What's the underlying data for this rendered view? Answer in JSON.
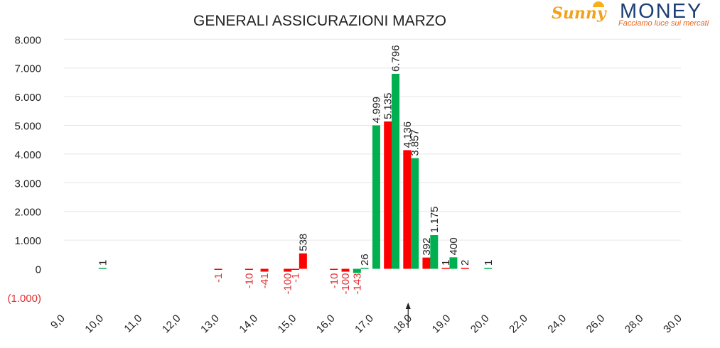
{
  "logo": {
    "brand_sunny": "Sunny",
    "brand_money": "MONEY",
    "tagline": "Facciamo luce sui mercati"
  },
  "chart_data": {
    "type": "bar",
    "title": "GENERALI ASSICURAZIONI MARZO",
    "xlabel": "",
    "ylabel": "",
    "ylim": [
      -1000,
      8000
    ],
    "y_ticks": [
      "8.000",
      "7.000",
      "6.000",
      "5.000",
      "4.000",
      "3.000",
      "2.000",
      "1.000",
      "0",
      "(1.000)"
    ],
    "y_tick_values": [
      8000,
      7000,
      6000,
      5000,
      4000,
      3000,
      2000,
      1000,
      0,
      -1000
    ],
    "categories": [
      "9,0",
      "10,0",
      "11,0",
      "12,0",
      "13,0",
      "14,0",
      "15,0",
      "16,0",
      "17,0",
      "18,0",
      "19,0",
      "20,0",
      "22,0",
      "24,0",
      "26,0",
      "28,0",
      "30,0"
    ],
    "current_price_marker": "18,0",
    "grid": true,
    "colors": {
      "positive": "#00b050",
      "negative": "#ff0000",
      "negative_label": "#e03030",
      "label": "#222222"
    },
    "bars": [
      {
        "x": 10.0,
        "value": 1,
        "label": "1",
        "color": "#00b050"
      },
      {
        "x": 13.0,
        "value": -1,
        "label": "-1",
        "color": "#ff0000"
      },
      {
        "x": 13.8,
        "value": -10,
        "label": "-10",
        "color": "#ff0000"
      },
      {
        "x": 14.2,
        "value": -41,
        "label": "-41",
        "color": "#ff0000"
      },
      {
        "x": 14.8,
        "value": -100,
        "label": "-100",
        "color": "#ff0000"
      },
      {
        "x": 15.0,
        "value": -1,
        "label": "-1",
        "color": "#ff0000"
      },
      {
        "x": 15.2,
        "value": 538,
        "label": "538",
        "color": "#ff0000"
      },
      {
        "x": 16.0,
        "value": -10,
        "label": "-10",
        "color": "#ff0000"
      },
      {
        "x": 16.3,
        "value": -100,
        "label": "-100",
        "color": "#ff0000"
      },
      {
        "x": 16.6,
        "value": -143,
        "label": "-143",
        "color": "#00b050"
      },
      {
        "x": 16.8,
        "value": 26,
        "label": "26",
        "color": "#00b050"
      },
      {
        "x": 17.1,
        "value": 4999,
        "label": "4.999",
        "color": "#00b050"
      },
      {
        "x": 17.4,
        "value": 5135,
        "label": "5.135",
        "color": "#ff0000"
      },
      {
        "x": 17.6,
        "value": 6796,
        "label": "6.796",
        "color": "#00b050"
      },
      {
        "x": 17.9,
        "value": 4136,
        "label": "4.136",
        "color": "#ff0000"
      },
      {
        "x": 18.1,
        "value": 3857,
        "label": "3.857",
        "color": "#00b050"
      },
      {
        "x": 18.4,
        "value": 392,
        "label": "392",
        "color": "#ff0000"
      },
      {
        "x": 18.6,
        "value": 1175,
        "label": "1.175",
        "color": "#00b050"
      },
      {
        "x": 18.9,
        "value": 1,
        "label": "1",
        "color": "#ff0000"
      },
      {
        "x": 19.1,
        "value": 400,
        "label": "400",
        "color": "#00b050"
      },
      {
        "x": 19.4,
        "value": 2,
        "label": "2",
        "color": "#ff0000"
      },
      {
        "x": 20.0,
        "value": 1,
        "label": "1",
        "color": "#00b050"
      }
    ]
  }
}
